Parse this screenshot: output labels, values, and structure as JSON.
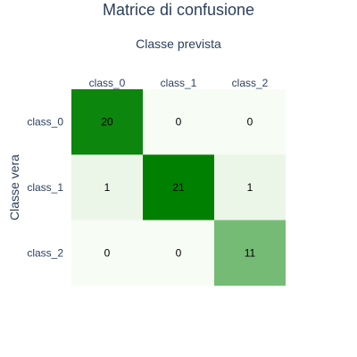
{
  "chart_data": {
    "type": "heatmap",
    "title": "Matrice di confusione",
    "xlabel": "Classe prevista",
    "ylabel": "Classe vera",
    "x_categories": [
      "class_0",
      "class_1",
      "class_2"
    ],
    "y_categories": [
      "class_0",
      "class_1",
      "class_2"
    ],
    "values": [
      [
        20,
        0,
        0
      ],
      [
        1,
        21,
        1
      ],
      [
        0,
        0,
        11
      ]
    ],
    "zmin": 0,
    "zmax": 21,
    "x_axis_position": "top",
    "colorscale": {
      "low": "#f7fcf5",
      "high": "#008000"
    },
    "label_color": "#000000",
    "text_color": "#2a3f5f"
  }
}
